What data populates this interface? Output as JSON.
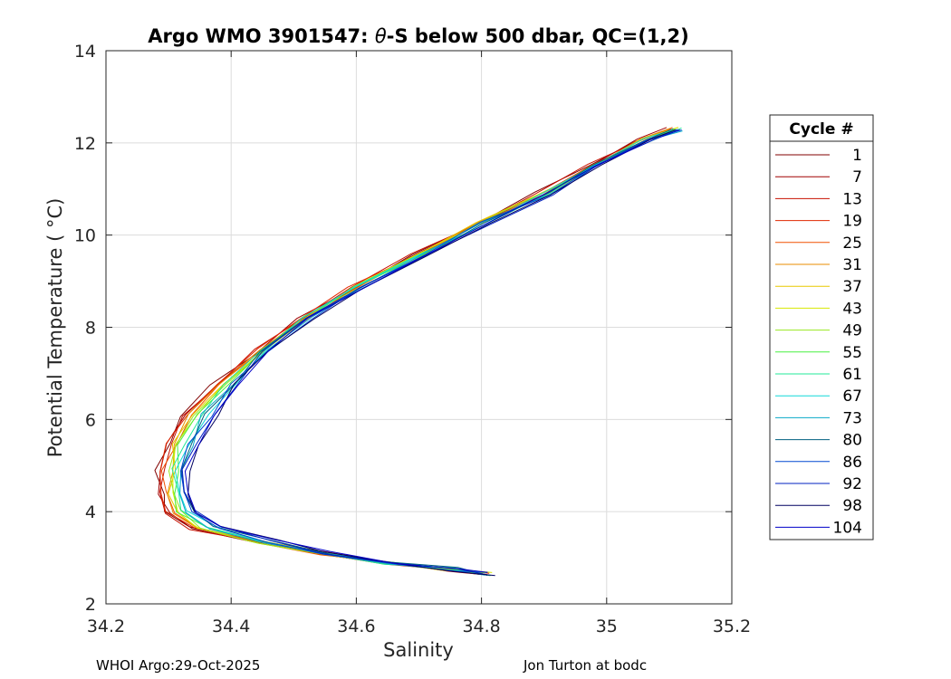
{
  "chart_data": {
    "type": "line",
    "title": "Argo WMO 3901547: θ-S below 500 dbar,  QC=(1,2)",
    "title_prefix": "Argo WMO 3901547: ",
    "title_theta": "θ",
    "title_suffix": "-S below 500 dbar,  QC=(1,2)",
    "xlabel": "Salinity",
    "ylabel": "Potential Temperature ( °C)",
    "xlim": [
      34.2,
      35.2
    ],
    "ylim": [
      2,
      14
    ],
    "xticks": [
      34.2,
      34.4,
      34.6,
      34.8,
      35,
      35.2
    ],
    "xtick_labels": [
      "34.2",
      "34.4",
      "34.6",
      "34.8",
      "35",
      "35.2"
    ],
    "yticks": [
      2,
      4,
      6,
      8,
      10,
      12,
      14
    ],
    "ytick_labels": [
      "2",
      "4",
      "6",
      "8",
      "10",
      "12",
      "14"
    ],
    "grid": true,
    "legend_position": "outside-right",
    "legend_title": "Cycle #",
    "colormap": "jet",
    "series": [
      {
        "name": "1",
        "color": "#800000"
      },
      {
        "name": "7",
        "color": "#a00000"
      },
      {
        "name": "13",
        "color": "#c81000"
      },
      {
        "name": "19",
        "color": "#e02800"
      },
      {
        "name": "25",
        "color": "#f05000"
      },
      {
        "name": "31",
        "color": "#e88c00"
      },
      {
        "name": "37",
        "color": "#e8c800"
      },
      {
        "name": "43",
        "color": "#d8e800"
      },
      {
        "name": "49",
        "color": "#98e820"
      },
      {
        "name": "55",
        "color": "#48f040"
      },
      {
        "name": "61",
        "color": "#20e898"
      },
      {
        "name": "67",
        "color": "#10d8d8"
      },
      {
        "name": "73",
        "color": "#08a8c8"
      },
      {
        "name": "80",
        "color": "#006080"
      },
      {
        "name": "86",
        "color": "#0048d0"
      },
      {
        "name": "92",
        "color": "#0020c0"
      },
      {
        "name": "98",
        "color": "#000060"
      },
      {
        "name": "104",
        "color": "#0000c8"
      }
    ],
    "representative_profile": {
      "salinity": [
        35.11,
        35.06,
        34.98,
        34.9,
        34.8,
        34.7,
        34.6,
        34.52,
        34.45,
        34.39,
        34.35,
        34.32,
        34.31,
        34.31,
        34.32,
        34.36,
        34.45,
        34.55,
        34.65,
        34.75,
        34.81
      ],
      "theta": [
        12.3,
        12.05,
        11.5,
        10.9,
        10.25,
        9.55,
        8.85,
        8.2,
        7.5,
        6.75,
        6.1,
        5.45,
        4.9,
        4.4,
        4.0,
        3.65,
        3.35,
        3.1,
        2.9,
        2.75,
        2.65
      ]
    }
  },
  "footer": {
    "left": "WHOI Argo:29-Oct-2025",
    "right": "Jon Turton at bodc"
  }
}
